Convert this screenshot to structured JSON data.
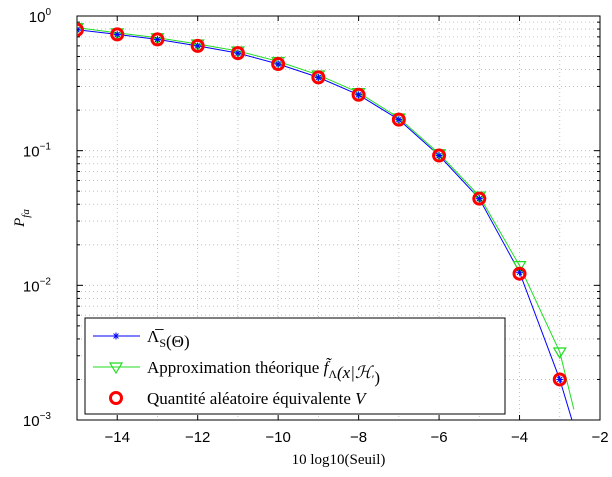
{
  "chart_data": {
    "type": "line",
    "xlabel": "10 log10(Seuil)",
    "ylabel": "P_fa",
    "ylabel_base": "P",
    "ylabel_sub": "fa",
    "xlim": [
      -15,
      -2
    ],
    "ylim": [
      0.001,
      1
    ],
    "yscale": "log",
    "grid": true,
    "legend_position": "bottom-left",
    "xticks": [
      -14,
      -12,
      -10,
      -8,
      -6,
      -4,
      -2
    ],
    "xtick_labels": [
      "−14",
      "−12",
      "−10",
      "−8",
      "−6",
      "−4",
      "−2"
    ],
    "yticks": [
      {
        "value": 1,
        "base": "10",
        "exp": "0"
      },
      {
        "value": 0.1,
        "base": "10",
        "exp": "−1"
      },
      {
        "value": 0.01,
        "base": "10",
        "exp": "−2"
      },
      {
        "value": 0.001,
        "base": "10",
        "exp": "−3"
      }
    ],
    "series": [
      {
        "name": "Λ̅_S(Θ)",
        "color": "#0000ff",
        "marker": "asterisk",
        "x": [
          -15,
          -14,
          -13,
          -12,
          -11,
          -10,
          -9,
          -8,
          -7,
          -6,
          -5,
          -4,
          -3,
          -2.6
        ],
        "y": [
          0.79,
          0.73,
          0.67,
          0.6,
          0.53,
          0.44,
          0.35,
          0.26,
          0.17,
          0.092,
          0.044,
          0.0125,
          0.002,
          0.0008
        ]
      },
      {
        "name": "Approximation théorique f̃_Λ(x|H′)",
        "color": "#22dd22",
        "marker": "triangle-down",
        "x": [
          -15,
          -14,
          -13,
          -12,
          -11,
          -10,
          -9,
          -8,
          -7,
          -6,
          -5,
          -4,
          -3,
          -2.65
        ],
        "y": [
          0.82,
          0.75,
          0.69,
          0.62,
          0.55,
          0.46,
          0.365,
          0.27,
          0.175,
          0.095,
          0.046,
          0.014,
          0.0032,
          0.0012
        ]
      },
      {
        "name": "Quantité aléatoire équivalente V",
        "color": "#ff0000",
        "marker": "circle",
        "x": [
          -15,
          -14,
          -13,
          -12,
          -11,
          -10,
          -9,
          -8,
          -7,
          -6,
          -5,
          -4,
          -3
        ],
        "y": [
          0.79,
          0.73,
          0.67,
          0.6,
          0.53,
          0.44,
          0.35,
          0.26,
          0.17,
          0.092,
          0.044,
          0.0122,
          0.002
        ]
      }
    ],
    "legend": [
      {
        "parts": [
          {
            "t": "Λ̅",
            "style": "normal"
          },
          {
            "t": "S",
            "style": "sub"
          },
          {
            "t": "(Θ)",
            "style": "normal"
          }
        ]
      },
      {
        "parts": [
          {
            "t": "Approximation théorique ",
            "style": "normal"
          },
          {
            "t": "f̃",
            "style": "italic"
          },
          {
            "t": "Λ",
            "style": "sub"
          },
          {
            "t": "(x|ℋ",
            "style": "italic"
          },
          {
            "t": "′",
            "style": "sub"
          },
          {
            "t": ")",
            "style": "normal"
          }
        ]
      },
      {
        "parts": [
          {
            "t": "Quantité aléatoire équivalente ",
            "style": "normal"
          },
          {
            "t": "V",
            "style": "italic"
          }
        ]
      }
    ]
  }
}
